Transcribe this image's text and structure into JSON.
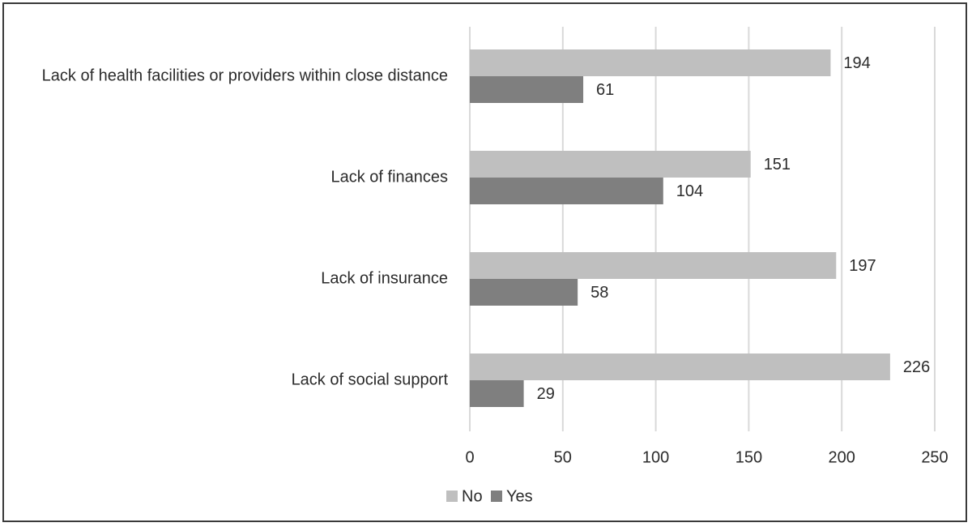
{
  "chart_data": {
    "type": "bar",
    "orientation": "horizontal",
    "categories": [
      "Lack of health facilities or providers within close distance",
      "Lack of finances",
      "Lack of insurance",
      "Lack of social support"
    ],
    "series": [
      {
        "name": "No",
        "values": [
          194,
          151,
          197,
          226
        ],
        "color": "#bfbfbf"
      },
      {
        "name": "Yes",
        "values": [
          61,
          104,
          58,
          29
        ],
        "color": "#7f7f7f"
      }
    ],
    "xlim": [
      0,
      250
    ],
    "ticks": [
      0,
      50,
      100,
      150,
      200,
      250
    ],
    "grid": true,
    "legend_position": "bottom-center",
    "data_labels": true
  }
}
